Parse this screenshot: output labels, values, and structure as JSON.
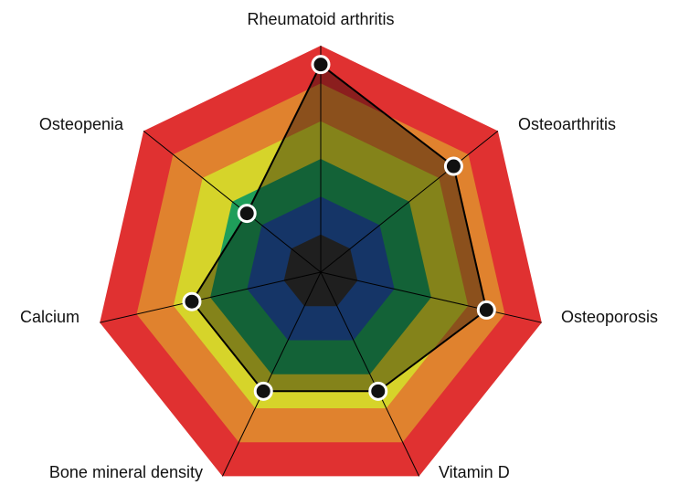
{
  "chart_data": {
    "type": "radar",
    "categories": [
      "Rheumatoid arthritis",
      "Osteoarthritis",
      "Osteoporosis",
      "Vitamin D",
      "Bone mineral density",
      "Calcium",
      "Osteopenia"
    ],
    "values": [
      5.5,
      4.5,
      4.5,
      3.5,
      3.5,
      3.5,
      2.5
    ],
    "rlim": [
      0,
      6
    ],
    "rticks": [
      1,
      2,
      3,
      4,
      5,
      6
    ],
    "band_colors": [
      "#333333",
      "#2256a6",
      "#1f9e5a",
      "#d6d42a",
      "#e0822e",
      "#e03131"
    ],
    "color": "#000000"
  }
}
